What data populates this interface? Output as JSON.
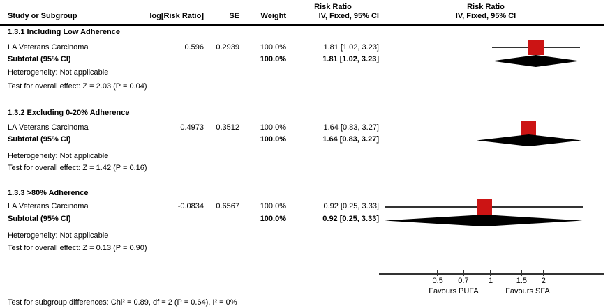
{
  "header": {
    "risk_ratio_col_title": "Risk Ratio",
    "study_col": "Study or Subgroup",
    "log_rr_col": "log[Risk Ratio]",
    "se_col": "SE",
    "weight_col": "Weight",
    "iv_fixed_col": "IV, Fixed, 95% CI",
    "plot_title": "Risk Ratio",
    "plot_subtitle": "IV, Fixed, 95% CI"
  },
  "groups": [
    {
      "title": "1.3.1 Including Low Adherence",
      "study": {
        "name": "LA Veterans Carcinoma",
        "log_rr": "0.596",
        "se": "0.2939",
        "weight": "100.0%",
        "ci": "1.81 [1.02, 3.23]"
      },
      "subtotal": {
        "label": "Subtotal (95% CI)",
        "weight": "100.0%",
        "ci": "1.81 [1.02, 3.23]"
      },
      "heterogeneity": "Heterogeneity: Not applicable",
      "overall_effect": "Test for overall effect: Z = 2.03 (P = 0.04)"
    },
    {
      "title": "1.3.2 Excluding 0-20% Adherence",
      "study": {
        "name": "LA Veterans Carcinoma",
        "log_rr": "0.4973",
        "se": "0.3512",
        "weight": "100.0%",
        "ci": "1.64 [0.83, 3.27]"
      },
      "subtotal": {
        "label": "Subtotal (95% CI)",
        "weight": "100.0%",
        "ci": "1.64 [0.83, 3.27]"
      },
      "heterogeneity": "Heterogeneity: Not applicable",
      "overall_effect": "Test for overall effect: Z = 1.42 (P = 0.16)"
    },
    {
      "title": "1.3.3 >80% Adherence",
      "study": {
        "name": "LA Veterans Carcinoma",
        "log_rr": "-0.0834",
        "se": "0.6567",
        "weight": "100.0%",
        "ci": "0.92 [0.25, 3.33]"
      },
      "subtotal": {
        "label": "Subtotal (95% CI)",
        "weight": "100.0%",
        "ci": "0.92 [0.25, 3.33]"
      },
      "heterogeneity": "Heterogeneity: Not applicable",
      "overall_effect": "Test for overall effect: Z = 0.13 (P = 0.90)"
    }
  ],
  "footer": {
    "subgroup_diff": "Test for subgroup differences: Chi² = 0.89, df = 2 (P = 0.64), I² = 0%"
  },
  "axis": {
    "tick_labels": [
      "0.5",
      "0.7",
      "1",
      "1.5",
      "2"
    ],
    "favours_left": "Favours PUFA",
    "favours_right": "Favours SFA"
  },
  "colors": {
    "marker_red": "#CC1414",
    "diamond_black": "#000000",
    "line": "#333333"
  },
  "chart_data": {
    "type": "forest",
    "scale": "log",
    "effect_measure": "Risk Ratio",
    "model": "IV, Fixed, 95% CI",
    "x_ticks": [
      0.5,
      0.7,
      1,
      1.5,
      2
    ],
    "x_axis_null_value": 1,
    "groups": [
      {
        "name": "1.3.1 Including Low Adherence",
        "study": {
          "name": "LA Veterans Carcinoma",
          "log_rr": 0.596,
          "se": 0.2939,
          "weight_pct": 100.0,
          "rr": 1.81,
          "ci_low": 1.02,
          "ci_high": 3.23
        },
        "subtotal": {
          "rr": 1.81,
          "ci_low": 1.02,
          "ci_high": 3.23,
          "weight_pct": 100.0,
          "z": 2.03,
          "p": 0.04
        }
      },
      {
        "name": "1.3.2 Excluding 0-20% Adherence",
        "study": {
          "name": "LA Veterans Carcinoma",
          "log_rr": 0.4973,
          "se": 0.3512,
          "weight_pct": 100.0,
          "rr": 1.64,
          "ci_low": 0.83,
          "ci_high": 3.27
        },
        "subtotal": {
          "rr": 1.64,
          "ci_low": 0.83,
          "ci_high": 3.27,
          "weight_pct": 100.0,
          "z": 1.42,
          "p": 0.16
        }
      },
      {
        "name": "1.3.3 >80% Adherence",
        "study": {
          "name": "LA Veterans Carcinoma",
          "log_rr": -0.0834,
          "se": 0.6567,
          "weight_pct": 100.0,
          "rr": 0.92,
          "ci_low": 0.25,
          "ci_high": 3.33
        },
        "subtotal": {
          "rr": 0.92,
          "ci_low": 0.25,
          "ci_high": 3.33,
          "weight_pct": 100.0,
          "z": 0.13,
          "p": 0.9
        }
      }
    ],
    "subgroup_difference": {
      "chi2": 0.89,
      "df": 2,
      "p": 0.64,
      "i2_pct": 0
    },
    "favours_left": "Favours PUFA",
    "favours_right": "Favours SFA"
  }
}
